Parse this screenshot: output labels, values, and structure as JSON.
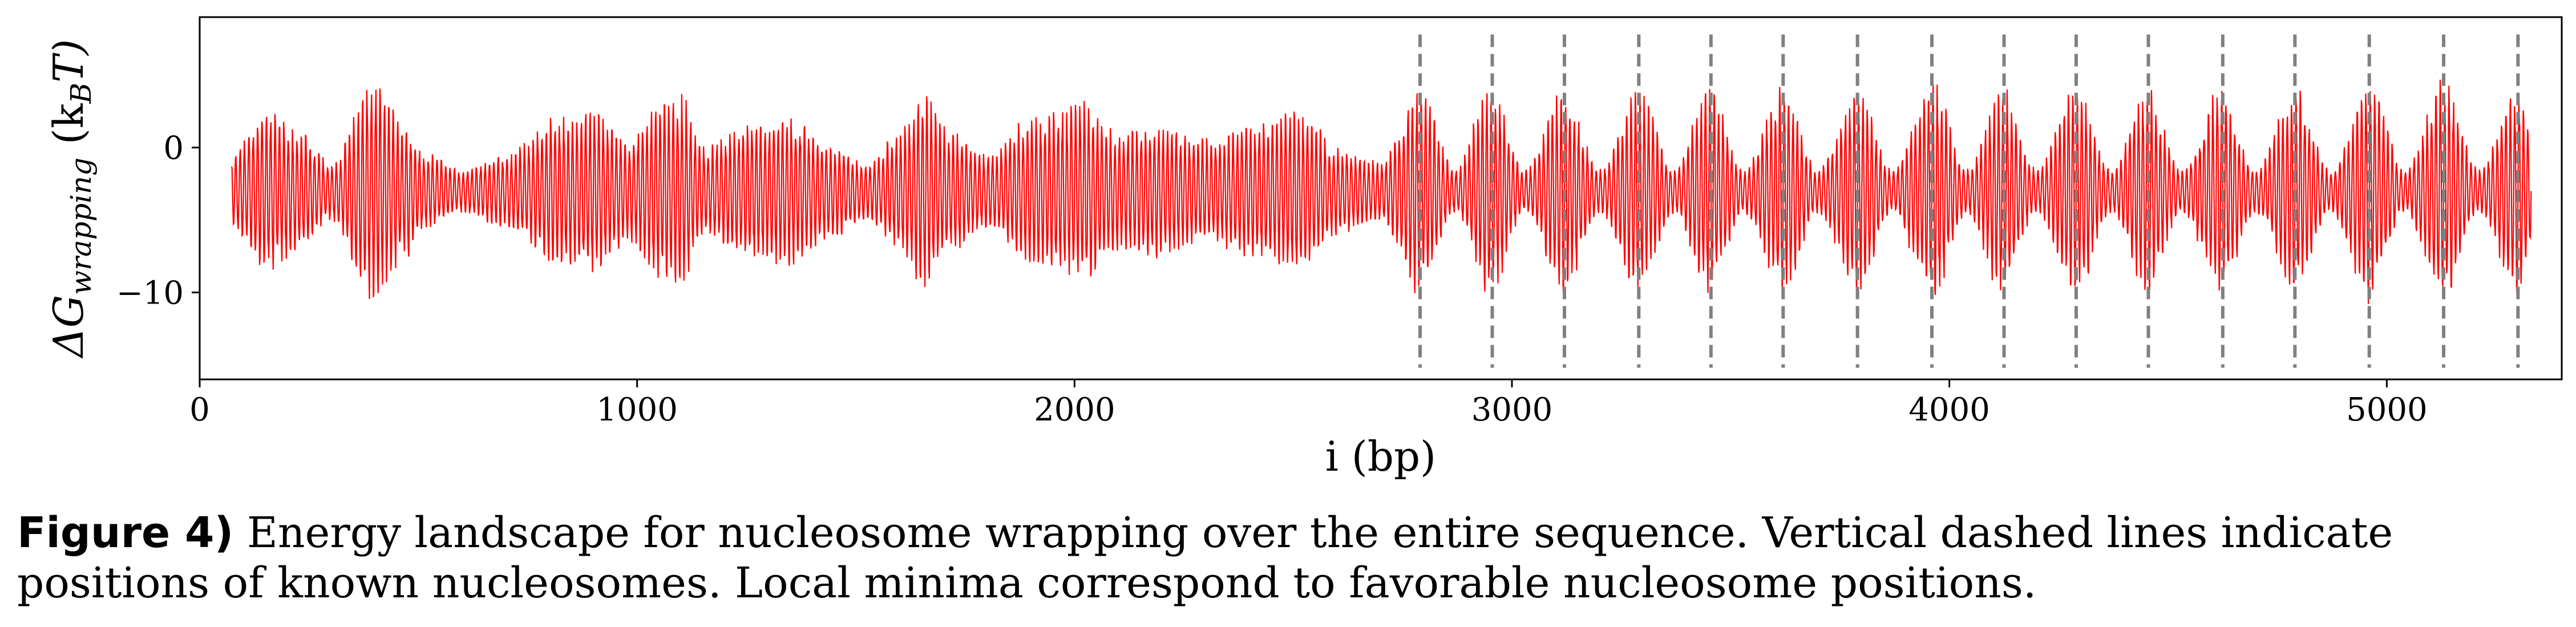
{
  "chart_data": {
    "type": "line",
    "xlabel": "i (bp)",
    "ylabel_main": "ΔG",
    "ylabel_sub": "wrapping",
    "ylabel_unit_open": " (k",
    "ylabel_unit_sub": "B",
    "ylabel_unit_close": "T)",
    "xlim": [
      0,
      5400
    ],
    "ylim": [
      -16,
      9
    ],
    "x_ticks": [
      0,
      1000,
      2000,
      3000,
      4000,
      5000
    ],
    "x_tick_labels": [
      "0",
      "1000",
      "2000",
      "3000",
      "4000",
      "5000"
    ],
    "y_ticks": [
      0,
      -10
    ],
    "y_tick_labels": [
      "0",
      "−10"
    ],
    "series": [
      {
        "color": "#ff0000",
        "x_start": 73,
        "x_end": 5330,
        "baseline": -3,
        "oscillation_period_bp": 10,
        "envelope": [
          [
            73,
            2.5
          ],
          [
            150,
            5.5
          ],
          [
            230,
            4.0
          ],
          [
            300,
            2.0
          ],
          [
            400,
            7.5
          ],
          [
            470,
            4.5
          ],
          [
            520,
            2.5
          ],
          [
            600,
            1.5
          ],
          [
            700,
            2.5
          ],
          [
            820,
            5.0
          ],
          [
            900,
            5.5
          ],
          [
            980,
            3.5
          ],
          [
            1050,
            6.0
          ],
          [
            1100,
            6.5
          ],
          [
            1150,
            3.0
          ],
          [
            1250,
            4.5
          ],
          [
            1350,
            5.0
          ],
          [
            1450,
            3.0
          ],
          [
            1530,
            2.0
          ],
          [
            1600,
            4.0
          ],
          [
            1650,
            6.5
          ],
          [
            1720,
            4.0
          ],
          [
            1800,
            2.5
          ],
          [
            1900,
            5.0
          ],
          [
            2030,
            6.0
          ],
          [
            2100,
            4.0
          ],
          [
            2200,
            4.5
          ],
          [
            2300,
            3.5
          ],
          [
            2420,
            4.5
          ],
          [
            2520,
            5.5
          ],
          [
            2600,
            3.0
          ],
          [
            2700,
            2.0
          ],
          [
            2790,
            7.0
          ],
          [
            2870,
            1.5
          ],
          [
            2950,
            7.0
          ],
          [
            3030,
            1.5
          ],
          [
            3120,
            7.0
          ],
          [
            3200,
            1.5
          ],
          [
            3290,
            7.0
          ],
          [
            3370,
            1.5
          ],
          [
            3450,
            7.0
          ],
          [
            3530,
            1.5
          ],
          [
            3620,
            7.0
          ],
          [
            3700,
            1.5
          ],
          [
            3790,
            7.0
          ],
          [
            3870,
            1.5
          ],
          [
            3960,
            7.5
          ],
          [
            4040,
            1.5
          ],
          [
            4120,
            7.0
          ],
          [
            4200,
            1.5
          ],
          [
            4290,
            7.0
          ],
          [
            4370,
            1.5
          ],
          [
            4450,
            7.0
          ],
          [
            4530,
            1.5
          ],
          [
            4620,
            7.0
          ],
          [
            4700,
            1.5
          ],
          [
            4790,
            7.0
          ],
          [
            4870,
            1.5
          ],
          [
            4960,
            7.5
          ],
          [
            5040,
            1.5
          ],
          [
            5130,
            7.5
          ],
          [
            5210,
            1.5
          ],
          [
            5300,
            7.0
          ],
          [
            5330,
            4.0
          ]
        ]
      }
    ],
    "nucleosome_positions": [
      2790,
      2955,
      3120,
      3290,
      3455,
      3620,
      3790,
      3960,
      4125,
      4290,
      4455,
      4625,
      4790,
      4960,
      5130,
      5300
    ],
    "nucleosome_line_color": "#808080",
    "grid": false
  },
  "caption": {
    "label": "Figure 4)",
    "line1": " Energy landscape for nucleosome wrapping over the entire sequence. Vertical dashed lines indicate",
    "line2": "positions of known nucleosomes. Local minima correspond to favorable nucleosome positions."
  }
}
